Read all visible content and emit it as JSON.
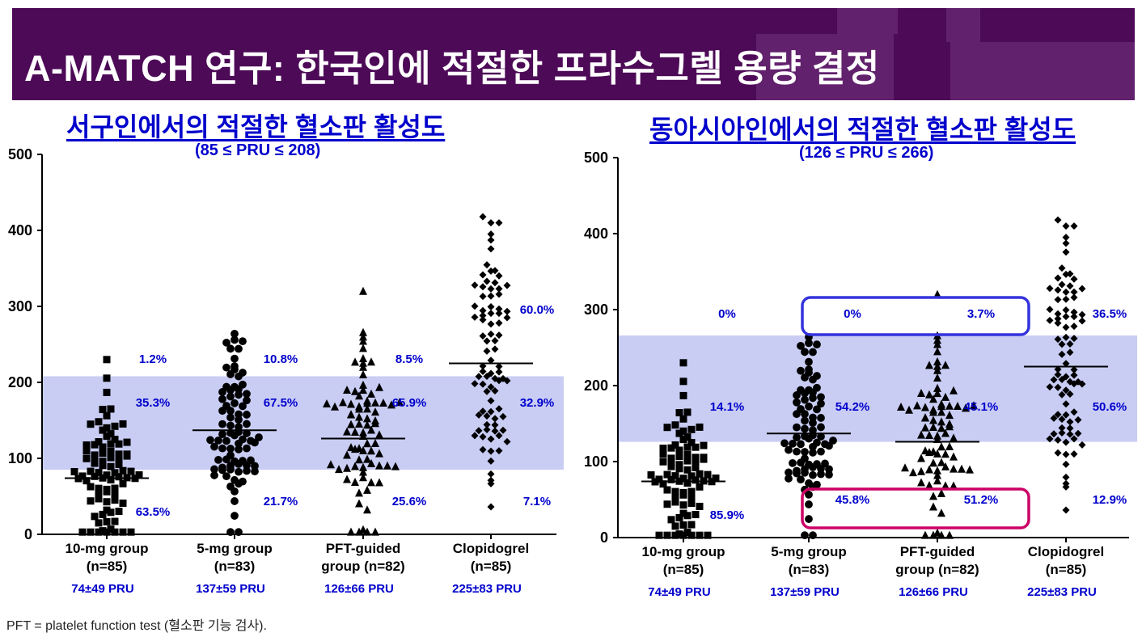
{
  "banner": {
    "title": "A-MATCH 연구: 한국인에 적절한 프라수그렐 용량 결정"
  },
  "left_chart": {
    "title": "서구인에서의 적절한 혈소판 활성도",
    "subtitle": "(85 ≤ PRU ≤ 208)"
  },
  "right_chart": {
    "title": "동아시아인에서의 적절한 혈소판 활성도",
    "subtitle": "(126 ≤ PRU ≤ 266)"
  },
  "footnote": "PFT = platelet function test (혈소판 기능 검사).",
  "colors": {
    "banner": "#4d0a57",
    "band": "#c9cdf3",
    "label_blue": "#0000cc",
    "box_blue": "#3333dd",
    "box_magenta": "#cc0066"
  },
  "chart_data": [
    {
      "type": "scatter",
      "title": "서구인에서의 적절한 혈소판 활성도",
      "subtitle": "(85 ≤ PRU ≤ 208)",
      "ylim": [
        0,
        500
      ],
      "yticks": [
        0,
        100,
        200,
        300,
        400,
        500
      ],
      "band": [
        85,
        208
      ],
      "groups": [
        {
          "label_line1": "10-mg group",
          "label_line2": "(n=85)",
          "summary": "74±49 PRU",
          "marker": "square",
          "mean": 74,
          "sd": 49,
          "max": 230,
          "pct_above": "1.2%",
          "pct_within": "35.3%",
          "pct_below": "63.5%"
        },
        {
          "label_line1": "5-mg group",
          "label_line2": "(n=83)",
          "summary": "137±59 PRU",
          "marker": "circle",
          "mean": 137,
          "sd": 59,
          "max": 264,
          "pct_above": "10.8%",
          "pct_within": "67.5%",
          "pct_below": "21.7%"
        },
        {
          "label_line1": "PFT-guided",
          "label_line2": "group (n=82)",
          "summary": "126±66 PRU",
          "marker": "triangle",
          "mean": 126,
          "sd": 66,
          "max": 320,
          "pct_above": "8.5%",
          "pct_within": "65.9%",
          "pct_below": "25.6%"
        },
        {
          "label_line1": "Clopidogrel",
          "label_line2": "(n=85)",
          "summary": "225±83 PRU",
          "marker": "diamond",
          "mean": 225,
          "sd": 83,
          "max": 418,
          "pct_above": "60.0%",
          "pct_within": "32.9%",
          "pct_below": "7.1%"
        }
      ]
    },
    {
      "type": "scatter",
      "title": "동아시아인에서의 적절한 혈소판 활성도",
      "subtitle": "(126 ≤ PRU ≤ 266)",
      "ylim": [
        0,
        500
      ],
      "yticks": [
        0,
        100,
        200,
        300,
        400,
        500
      ],
      "band": [
        126,
        266
      ],
      "groups": [
        {
          "label_line1": "10-mg group",
          "label_line2": "(n=85)",
          "summary": "74±49 PRU",
          "marker": "square",
          "mean": 74,
          "sd": 49,
          "max": 230,
          "pct_above": "0%",
          "pct_within": "14.1%",
          "pct_below": "85.9%"
        },
        {
          "label_line1": "5-mg group",
          "label_line2": "(n=83)",
          "summary": "137±59 PRU",
          "marker": "circle",
          "mean": 137,
          "sd": 59,
          "max": 264,
          "pct_above": "0%",
          "pct_within": "54.2%",
          "pct_below": "45.8%"
        },
        {
          "label_line1": "PFT-guided",
          "label_line2": "group (n=82)",
          "summary": "126±66 PRU",
          "marker": "triangle",
          "mean": 126,
          "sd": 66,
          "max": 320,
          "pct_above": "3.7%",
          "pct_within": "45.1%",
          "pct_below": "51.2%"
        },
        {
          "label_line1": "Clopidogrel",
          "label_line2": "(n=85)",
          "summary": "225±83 PRU",
          "marker": "diamond",
          "mean": 225,
          "sd": 83,
          "max": 418,
          "pct_above": "36.5%",
          "pct_within": "50.6%",
          "pct_below": "12.9%"
        }
      ]
    }
  ]
}
